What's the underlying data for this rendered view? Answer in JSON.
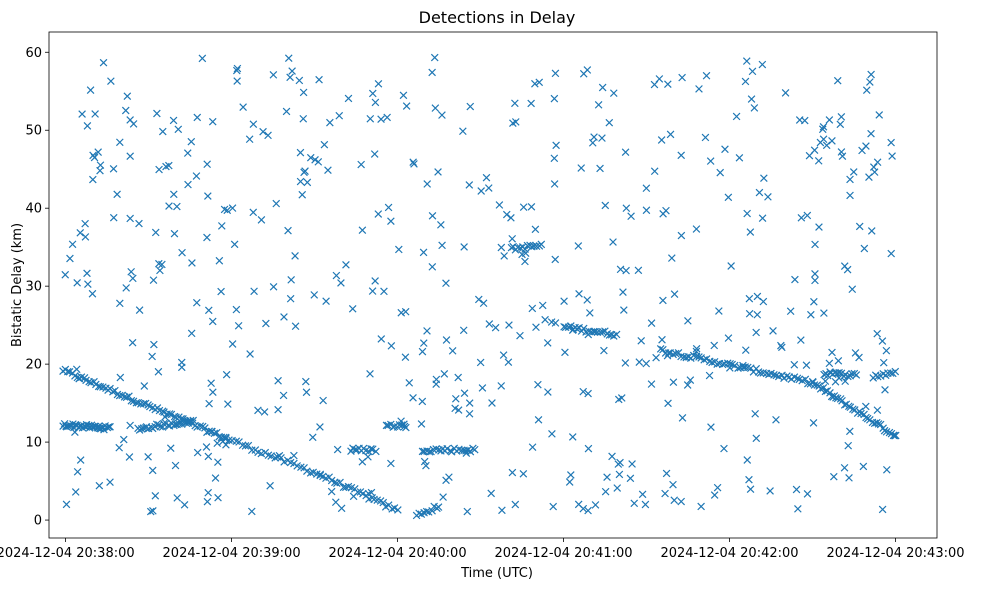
{
  "chart_data": {
    "type": "scatter",
    "title": "Detections in Delay",
    "xlabel": "Time (UTC)",
    "ylabel": "Bistatic Delay (km)",
    "marker": "x",
    "color": "#1f77b4",
    "grid": false,
    "legend": "none",
    "xlim": [
      "2024-12-04 20:37:54",
      "2024-12-04 20:43:15"
    ],
    "ylim": [
      -2.3,
      62.6
    ],
    "x_ticks": [
      "2024-12-04 20:38:00",
      "2024-12-04 20:39:00",
      "2024-12-04 20:40:00",
      "2024-12-04 20:41:00",
      "2024-12-04 20:42:00",
      "2024-12-04 20:43:00"
    ],
    "y_ticks": [
      0,
      10,
      20,
      30,
      40,
      50,
      60
    ],
    "tracks": [
      {
        "from": [
          "2024-12-04 20:37:59",
          19.2
        ],
        "to": [
          "2024-12-04 20:38:58",
          10.5
        ],
        "count": 70
      },
      {
        "from": [
          "2024-12-04 20:38:58",
          10.5
        ],
        "to": [
          "2024-12-04 20:39:32",
          5.8
        ],
        "count": 30
      },
      {
        "from": [
          "2024-12-04 20:39:32",
          5.8
        ],
        "to": [
          "2024-12-04 20:40:00",
          1.2
        ],
        "count": 28
      },
      {
        "from": [
          "2024-12-04 20:37:59",
          12.2
        ],
        "to": [
          "2024-12-04 20:38:16",
          11.8
        ],
        "count": 34
      },
      {
        "from": [
          "2024-12-04 20:38:26",
          11.7
        ],
        "to": [
          "2024-12-04 20:38:46",
          12.7
        ],
        "count": 30
      },
      {
        "from": [
          "2024-12-04 20:40:07",
          0.6
        ],
        "to": [
          "2024-12-04 20:40:15",
          1.8
        ],
        "count": 10
      },
      {
        "from": [
          "2024-12-04 20:40:41",
          34.8
        ],
        "to": [
          "2024-12-04 20:40:52",
          35.2
        ],
        "count": 14
      },
      {
        "from": [
          "2024-12-04 20:41:00",
          24.8
        ],
        "to": [
          "2024-12-04 20:41:19",
          23.8
        ],
        "count": 24
      },
      {
        "from": [
          "2024-12-04 20:41:35",
          21.8
        ],
        "to": [
          "2024-12-04 20:42:30",
          17.6
        ],
        "count": 60
      },
      {
        "from": [
          "2024-12-04 20:42:30",
          17.6
        ],
        "to": [
          "2024-12-04 20:43:00",
          10.8
        ],
        "count": 40
      },
      {
        "from": [
          "2024-12-04 20:42:34",
          18.8
        ],
        "to": [
          "2024-12-04 20:42:46",
          18.6
        ],
        "count": 16
      },
      {
        "from": [
          "2024-12-04 20:42:52",
          18.4
        ],
        "to": [
          "2024-12-04 20:43:00",
          19.0
        ],
        "count": 10
      },
      {
        "from": [
          "2024-12-04 20:39:43",
          9.0
        ],
        "to": [
          "2024-12-04 20:39:52",
          9.0
        ],
        "count": 12
      },
      {
        "from": [
          "2024-12-04 20:39:56",
          12.1
        ],
        "to": [
          "2024-12-04 20:40:03",
          12.1
        ],
        "count": 10
      },
      {
        "from": [
          "2024-12-04 20:40:09",
          9.0
        ],
        "to": [
          "2024-12-04 20:40:28",
          9.0
        ],
        "count": 24
      }
    ],
    "noise": {
      "x_range": [
        "2024-12-04 20:37:59",
        "2024-12-04 20:43:00"
      ],
      "y_range": [
        1.0,
        59.5
      ],
      "count": 560
    }
  }
}
